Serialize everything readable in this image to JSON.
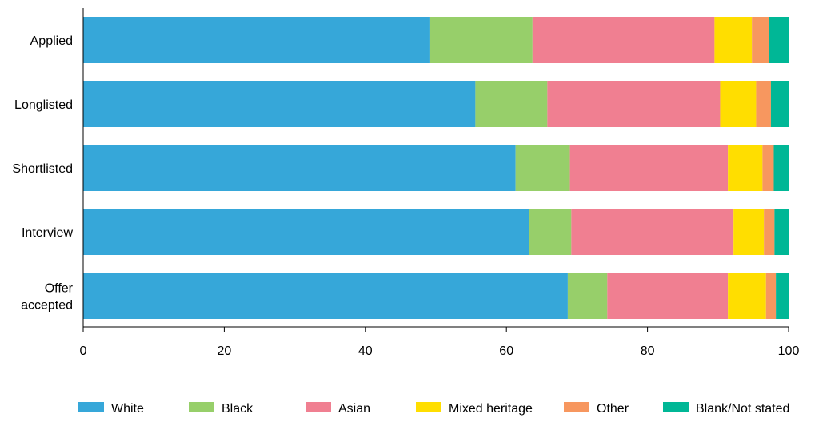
{
  "chart_data": {
    "type": "bar",
    "orientation": "horizontal",
    "stacked": true,
    "title": "",
    "xlabel": "",
    "ylabel": "",
    "xlim": [
      0,
      100
    ],
    "xticks": [
      0,
      20,
      40,
      60,
      80,
      100
    ],
    "grid": false,
    "legend_position": "bottom",
    "categories": [
      [
        "Applied"
      ],
      [
        "Longlisted"
      ],
      [
        "Shortlisted"
      ],
      [
        "Interview"
      ],
      [
        "Offer",
        "accepted"
      ]
    ],
    "series": [
      {
        "name": "White",
        "color": "#36a7d9",
        "values": [
          49.2,
          55.6,
          61.3,
          63.2,
          68.7
        ]
      },
      {
        "name": "Black",
        "color": "#97cf6a",
        "values": [
          14.5,
          10.2,
          7.7,
          6.0,
          5.6
        ]
      },
      {
        "name": "Asian",
        "color": "#f07f91",
        "values": [
          25.8,
          24.5,
          22.4,
          23.0,
          17.1
        ]
      },
      {
        "name": "Mixed heritage",
        "color": "#ffde00",
        "values": [
          5.3,
          5.1,
          4.9,
          4.3,
          5.4
        ]
      },
      {
        "name": "Other",
        "color": "#f7975f",
        "values": [
          2.4,
          2.1,
          1.6,
          1.5,
          1.4
        ]
      },
      {
        "name": "Blank/Not stated",
        "color": "#00b796",
        "values": [
          2.8,
          2.5,
          2.1,
          2.0,
          1.8
        ]
      }
    ]
  }
}
